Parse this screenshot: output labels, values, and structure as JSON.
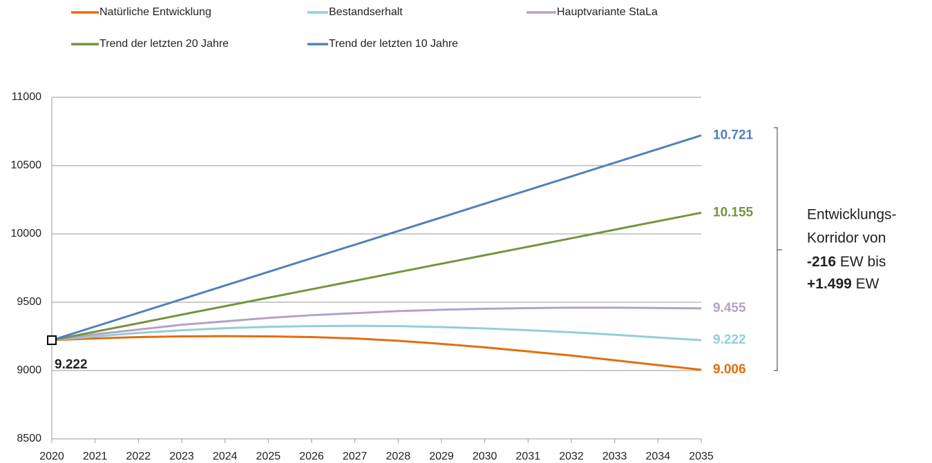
{
  "chart_data": {
    "type": "line",
    "x": [
      2020,
      2021,
      2022,
      2023,
      2024,
      2025,
      2026,
      2027,
      2028,
      2029,
      2030,
      2031,
      2032,
      2033,
      2034,
      2035
    ],
    "xlim": [
      2020,
      2035
    ],
    "xticks": [
      2020,
      2021,
      2022,
      2023,
      2024,
      2025,
      2026,
      2027,
      2028,
      2029,
      2030,
      2031,
      2032,
      2033,
      2034,
      2035
    ],
    "ylim": [
      8500,
      11000
    ],
    "yticks": [
      8500,
      9000,
      9500,
      10000,
      10500,
      11000
    ],
    "grid": true,
    "legend": "top",
    "series": [
      {
        "name": "Natürliche Entwicklung",
        "color": "#e46c0a",
        "values": [
          9222,
          9235,
          9245,
          9250,
          9252,
          9250,
          9245,
          9235,
          9218,
          9195,
          9170,
          9140,
          9110,
          9075,
          9040,
          9006
        ],
        "value_labels": [
          null,
          null,
          null,
          null,
          null,
          null,
          null,
          null,
          null,
          null,
          null,
          null,
          null,
          null,
          null,
          "9.006"
        ]
      },
      {
        "name": "Bestandserhalt",
        "color": "#92cddc",
        "values": [
          9222,
          9250,
          9275,
          9295,
          9310,
          9320,
          9325,
          9327,
          9325,
          9318,
          9308,
          9295,
          9280,
          9262,
          9242,
          9222
        ],
        "value_labels": [
          null,
          null,
          null,
          null,
          null,
          null,
          null,
          null,
          null,
          null,
          null,
          null,
          null,
          null,
          null,
          "9.222"
        ]
      },
      {
        "name": "Hauptvariante StaLa",
        "color": "#b3a2c7",
        "values": [
          9222,
          9265,
          9300,
          9335,
          9360,
          9385,
          9405,
          9420,
          9435,
          9445,
          9452,
          9457,
          9460,
          9460,
          9458,
          9455
        ],
        "value_labels": [
          null,
          null,
          null,
          null,
          null,
          null,
          null,
          null,
          null,
          null,
          null,
          null,
          null,
          null,
          null,
          "9.455"
        ]
      },
      {
        "name": "Trend der letzten 20 Jahre",
        "color": "#77933c",
        "values": [
          9222,
          9284,
          9346,
          9409,
          9471,
          9533,
          9595,
          9657,
          9720,
          9782,
          9844,
          9906,
          9968,
          10031,
          10093,
          10155
        ],
        "value_labels": [
          null,
          null,
          null,
          null,
          null,
          null,
          null,
          null,
          null,
          null,
          null,
          null,
          null,
          null,
          null,
          "10.155"
        ]
      },
      {
        "name": "Trend der letzten 10 Jahre",
        "color": "#4f81bd",
        "values": [
          9222,
          9322,
          9422,
          9522,
          9622,
          9722,
          9822,
          9921,
          10021,
          10121,
          10221,
          10321,
          10421,
          10521,
          10621,
          10721
        ],
        "value_labels": [
          null,
          null,
          null,
          null,
          null,
          null,
          null,
          null,
          null,
          null,
          null,
          null,
          null,
          null,
          null,
          "10.721"
        ]
      }
    ],
    "start_label": {
      "value": 9222,
      "label": "9.222"
    },
    "annotation": {
      "line1": "Entwicklungs-",
      "line2": "Korridor von",
      "low": "-216",
      "low_unit": "EW bis",
      "high": "+1.499",
      "high_unit": "EW"
    }
  }
}
